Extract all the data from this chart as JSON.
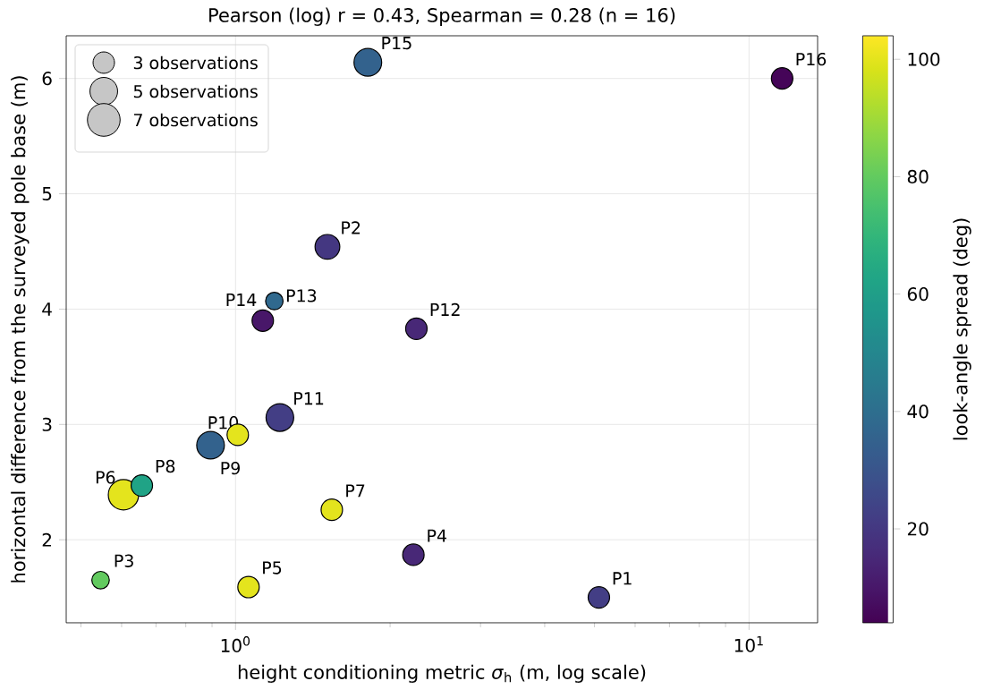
{
  "chart_data": {
    "type": "bubble",
    "title": "Pearson (log) r = 0.43, Spearman = 0.28  (n = 16)",
    "xlabel": "height conditioning metric *σ*$_{h}$ (m, log scale)",
    "ylabel": "horizontal difference from the surveyed pole base (m)",
    "clabel": "look-angle spread (deg)",
    "x": [
      5.1,
      1.51,
      0.546,
      2.22,
      1.06,
      0.605,
      1.54,
      0.657,
      0.894,
      1.01,
      1.22,
      2.25,
      1.19,
      1.13,
      1.81,
      11.6
    ],
    "values": [
      1.5,
      4.54,
      1.65,
      1.87,
      1.59,
      2.39,
      2.26,
      2.47,
      2.82,
      2.91,
      3.06,
      3.83,
      4.07,
      3.9,
      6.14,
      6.0
    ],
    "sizes": [
      3,
      4,
      2,
      3,
      3,
      6,
      3,
      3,
      5,
      3,
      5,
      3,
      2,
      3,
      5,
      3
    ],
    "cvalues": [
      22,
      20,
      80,
      15,
      100,
      100,
      100,
      62,
      35,
      100,
      22,
      15,
      38,
      10,
      35,
      5
    ],
    "size_legend": [
      {
        "value": 3,
        "label": "3 observations"
      },
      {
        "value": 5,
        "label": "5 observations"
      },
      {
        "value": 7,
        "label": "7 observations"
      }
    ],
    "annotations": [
      {
        "text": "P1",
        "x": 5.1,
        "y": 1.5
      },
      {
        "text": "P2",
        "x": 1.51,
        "y": 4.54
      },
      {
        "text": "P3",
        "x": 0.546,
        "y": 1.65
      },
      {
        "text": "P4",
        "x": 2.22,
        "y": 1.87
      },
      {
        "text": "P5",
        "x": 1.06,
        "y": 1.59
      },
      {
        "text": "P6",
        "x": 0.605,
        "y": 2.39
      },
      {
        "text": "P7",
        "x": 1.54,
        "y": 2.26
      },
      {
        "text": "P8",
        "x": 0.657,
        "y": 2.47
      },
      {
        "text": "P9",
        "x": 0.894,
        "y": 2.82
      },
      {
        "text": "P10",
        "x": 1.01,
        "y": 2.91
      },
      {
        "text": "P11",
        "x": 1.22,
        "y": 3.06
      },
      {
        "text": "P12",
        "x": 2.25,
        "y": 3.83
      },
      {
        "text": "P13",
        "x": 1.19,
        "y": 4.07
      },
      {
        "text": "P14",
        "x": 1.13,
        "y": 3.9
      },
      {
        "text": "P15",
        "x": 1.81,
        "y": 6.14
      },
      {
        "text": "P16",
        "x": 11.6,
        "y": 6.0
      }
    ],
    "xlim": [
      0.468,
      13.6
    ],
    "ylim": [
      1.28,
      6.37
    ],
    "xticks": [
      {
        "value": 0.5,
        "label": null
      },
      {
        "value": 0.6,
        "label": null
      },
      {
        "value": 0.7,
        "label": null
      },
      {
        "value": 0.8,
        "label": null
      },
      {
        "value": 0.9,
        "label": null
      },
      {
        "value": 1,
        "label": "10$^{0}$"
      },
      {
        "value": 2,
        "label": null
      },
      {
        "value": 3,
        "label": null
      },
      {
        "value": 4,
        "label": null
      },
      {
        "value": 5,
        "label": null
      },
      {
        "value": 6,
        "label": null
      },
      {
        "value": 7,
        "label": null
      },
      {
        "value": 8,
        "label": null
      },
      {
        "value": 9,
        "label": null
      },
      {
        "value": 10,
        "label": "10$^{1}$"
      }
    ],
    "yticks": [
      2,
      3,
      4,
      5,
      6
    ],
    "clim": [
      4,
      104
    ],
    "cticks": [
      20,
      40,
      60,
      80,
      100
    ],
    "log": "x",
    "grid": true,
    "marker": "circle"
  }
}
